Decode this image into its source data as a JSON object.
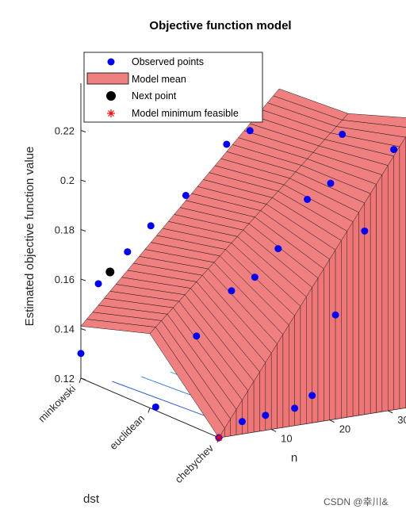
{
  "chart_data": {
    "type": "surface3d",
    "title": "Objective function model",
    "xlabel": "dst",
    "ylabel": "n",
    "zlabel": "Estimated objective function value",
    "x_categories": [
      "minkowski",
      "euclidean",
      "chebychev"
    ],
    "y_ticks": [
      10,
      20,
      30
    ],
    "z_ticks": [
      "0.12",
      "0.14",
      "0.16",
      "0.18",
      "0.2",
      "0.22"
    ],
    "zlim": [
      0.12,
      0.235
    ],
    "legend": {
      "position": "top-left",
      "entries": [
        {
          "label": "Observed points",
          "marker": "circle",
          "color": "#0000ff"
        },
        {
          "label": "Model mean",
          "marker": "patch",
          "color": "#f08080"
        },
        {
          "label": "Next point",
          "marker": "circle",
          "color": "#000000"
        },
        {
          "label": "Model minimum feasible",
          "marker": "asterisk",
          "color": "#ff0000"
        }
      ]
    },
    "model_mean": {
      "columns": [
        {
          "dst": "minkowski",
          "n": [
            1,
            35
          ],
          "z": [
            0.141,
            0.224
          ]
        },
        {
          "dst": "euclidean",
          "n": [
            1,
            35
          ],
          "z": [
            0.15,
            0.226
          ]
        },
        {
          "dst": "chebychev",
          "n": [
            1,
            35
          ],
          "z": [
            0.12,
            0.236
          ]
        }
      ]
    },
    "observed_points": [
      {
        "dst": "minkowski",
        "n": 1,
        "z": 0.13
      },
      {
        "dst": "minkowski",
        "n": 4,
        "z": 0.157
      },
      {
        "dst": "minkowski",
        "n": 9,
        "z": 0.168
      },
      {
        "dst": "minkowski",
        "n": 13,
        "z": 0.177
      },
      {
        "dst": "minkowski",
        "n": 19,
        "z": 0.187
      },
      {
        "dst": "minkowski",
        "n": 26,
        "z": 0.205
      },
      {
        "dst": "minkowski",
        "n": 30,
        "z": 0.209
      },
      {
        "dst": "euclidean",
        "n": 2,
        "z": 0.12
      },
      {
        "dst": "euclidean",
        "n": 9,
        "z": 0.146
      },
      {
        "dst": "euclidean",
        "n": 15,
        "z": 0.162
      },
      {
        "dst": "euclidean",
        "n": 19,
        "z": 0.166
      },
      {
        "dst": "euclidean",
        "n": 23,
        "z": 0.176
      },
      {
        "dst": "euclidean",
        "n": 28,
        "z": 0.194
      },
      {
        "dst": "euclidean",
        "n": 32,
        "z": 0.199
      },
      {
        "dst": "euclidean",
        "n": 34,
        "z": 0.218
      },
      {
        "dst": "chebychev",
        "n": 1,
        "z": 0.12
      },
      {
        "dst": "chebychev",
        "n": 5,
        "z": 0.125
      },
      {
        "dst": "chebychev",
        "n": 9,
        "z": 0.126
      },
      {
        "dst": "chebychev",
        "n": 14,
        "z": 0.127
      },
      {
        "dst": "chebychev",
        "n": 17,
        "z": 0.131
      },
      {
        "dst": "chebychev",
        "n": 21,
        "z": 0.162
      },
      {
        "dst": "chebychev",
        "n": 26,
        "z": 0.194
      },
      {
        "dst": "chebychev",
        "n": 31,
        "z": 0.225
      },
      {
        "dst": "chebychev",
        "n": 34,
        "z": 0.236
      }
    ],
    "next_point": {
      "dst": "minkowski",
      "n": 6,
      "z": 0.161
    },
    "model_minimum_feasible": {
      "dst": "chebychev",
      "n": 1,
      "z": 0.12
    },
    "contour_lines": {
      "colors": [
        "#2f5bd6",
        "#3b82d9",
        "#2ab0c0",
        "#5cc39a",
        "#a6d44a",
        "#e3d23a"
      ]
    },
    "grid": false
  },
  "watermark": "CSDN @幸川&"
}
